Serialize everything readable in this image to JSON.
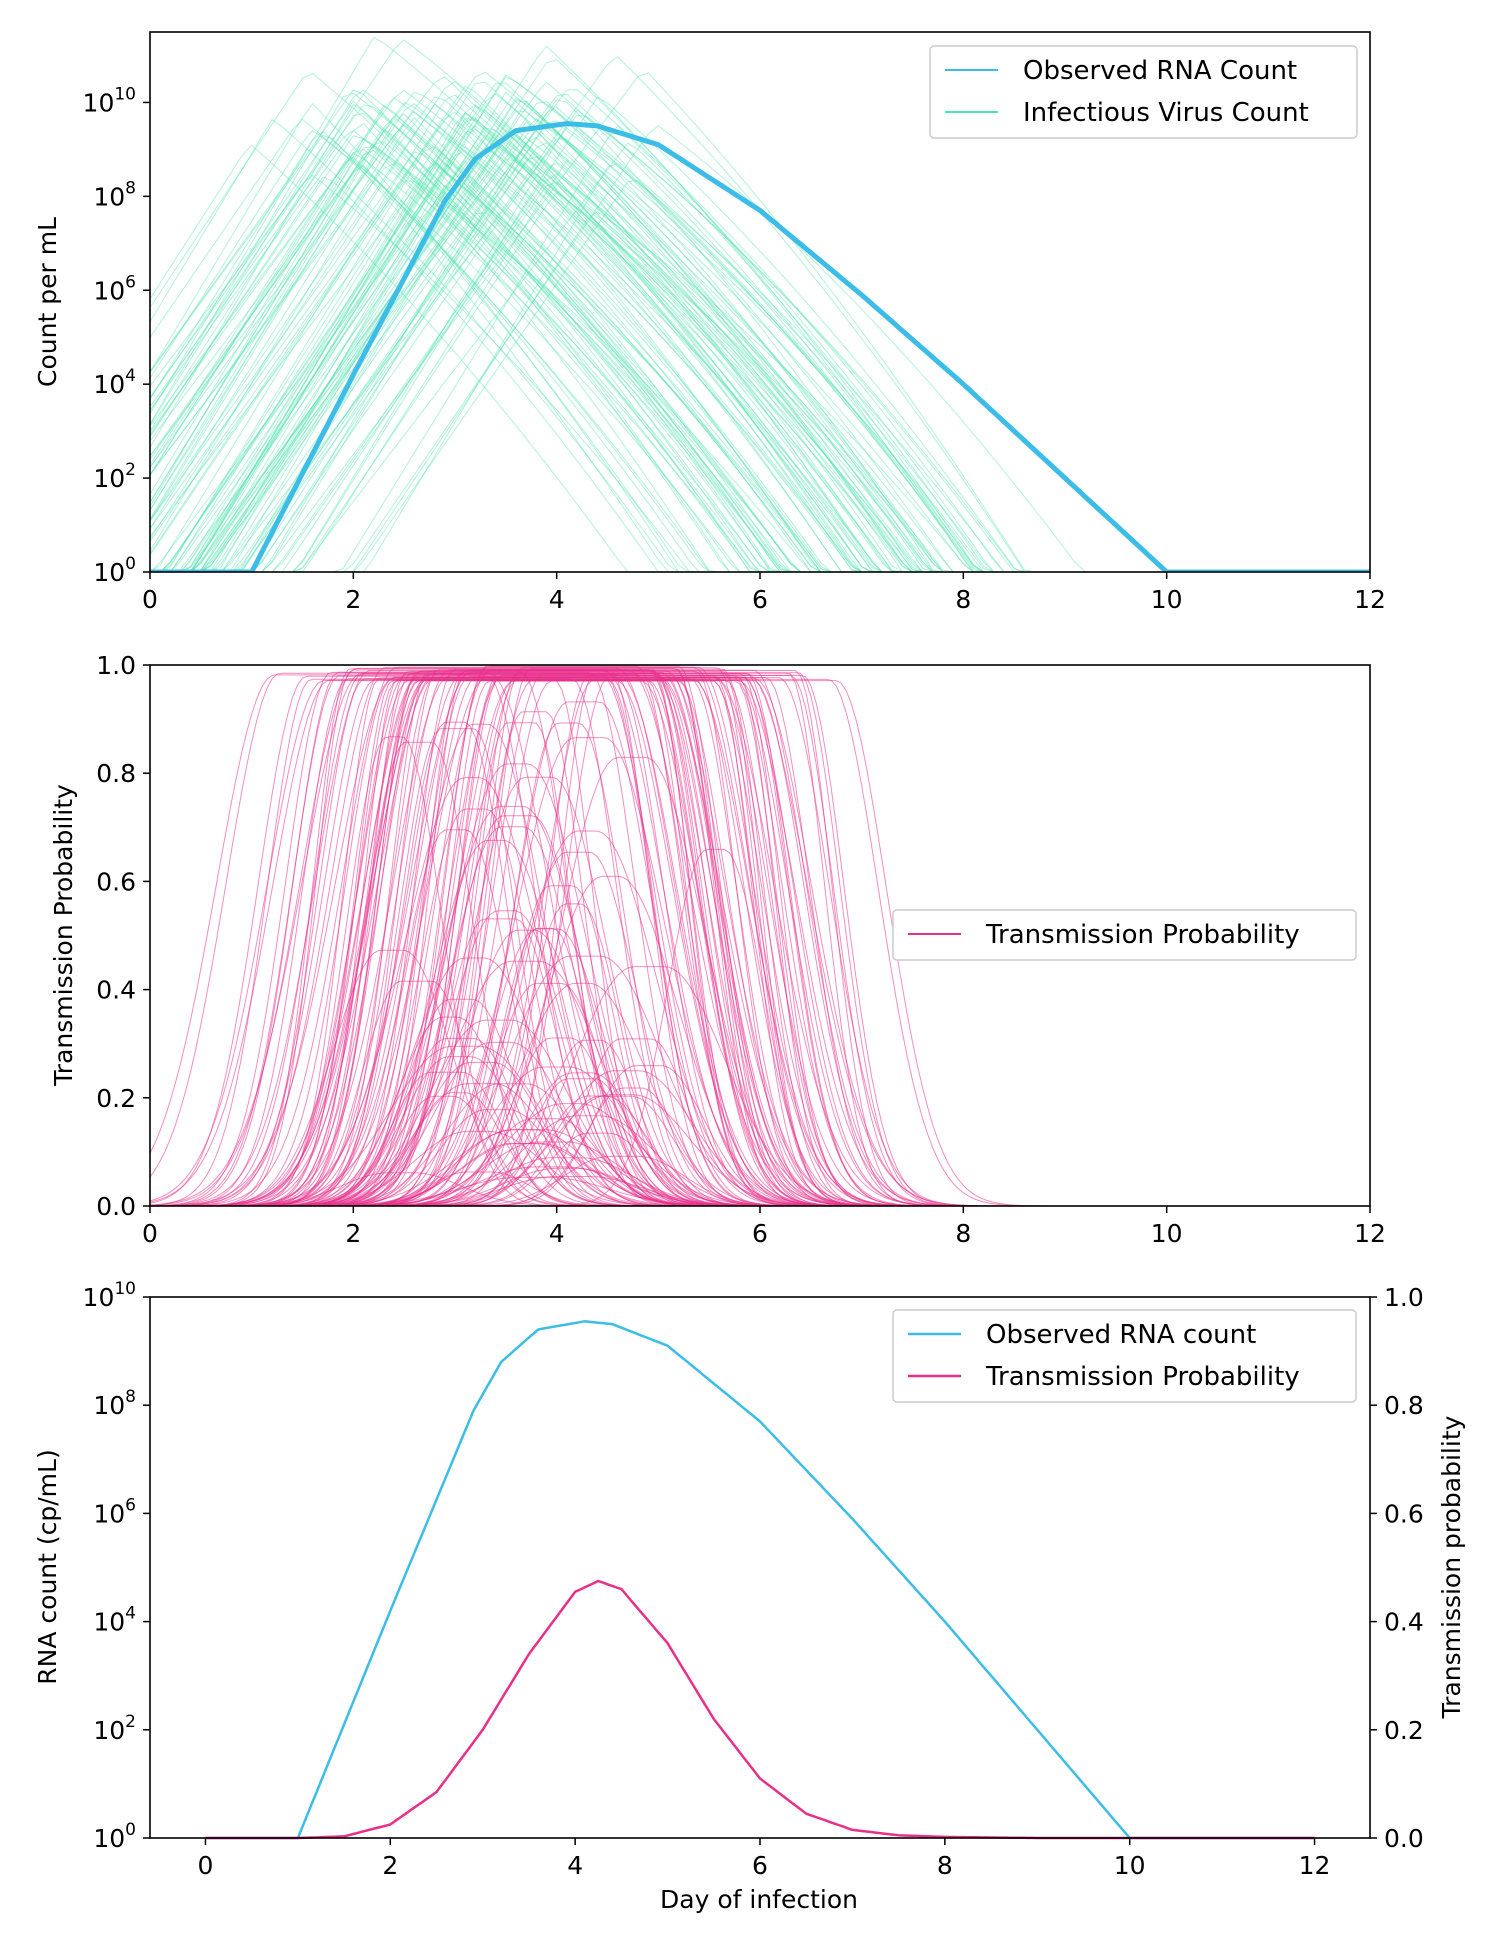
{
  "chart_data": [
    {
      "id": "top",
      "type": "line",
      "title": "",
      "xlabel": "",
      "ylabel": "Count per mL",
      "xlim": [
        0,
        12
      ],
      "ylim_log10": [
        0,
        11.5
      ],
      "yscale": "log",
      "xticks": [
        "0",
        "2",
        "4",
        "6",
        "8",
        "10",
        "12"
      ],
      "yticks": [
        {
          "base": "10",
          "exp": "0"
        },
        {
          "base": "10",
          "exp": "2"
        },
        {
          "base": "10",
          "exp": "4"
        },
        {
          "base": "10",
          "exp": "6"
        },
        {
          "base": "10",
          "exp": "8"
        },
        {
          "base": "10",
          "exp": "10"
        }
      ],
      "legend_position": "upper-right",
      "colors": {
        "rna": "#3cbde8",
        "virus": "#52e3b0"
      },
      "series": [
        {
          "name": "Observed RNA Count",
          "x": [
            0,
            1.0,
            2.0,
            2.9,
            3.2,
            3.6,
            4.1,
            4.4,
            5.0,
            6.0,
            7.0,
            8.0,
            9.0,
            10.0,
            10.5,
            12
          ],
          "y_log10": [
            0,
            0,
            4.2,
            7.9,
            8.8,
            9.4,
            9.55,
            9.5,
            9.1,
            7.7,
            5.9,
            4.0,
            2.0,
            0,
            0,
            0
          ]
        },
        {
          "name": "Infectious Virus Count",
          "note_count": 120
        }
      ]
    },
    {
      "id": "middle",
      "type": "line",
      "title": "",
      "xlabel": "",
      "ylabel": "Transmission Probability",
      "xlim": [
        0,
        12
      ],
      "ylim": [
        0,
        1
      ],
      "xticks": [
        "0",
        "2",
        "4",
        "6",
        "8",
        "10",
        "12"
      ],
      "yticks": [
        "0.0",
        "0.2",
        "0.4",
        "0.6",
        "0.8",
        "1.0"
      ],
      "legend_position": "center-right",
      "colors": {
        "prob": "#e8308a"
      },
      "series": [
        {
          "name": "Transmission Probability"
        }
      ]
    },
    {
      "id": "bottom",
      "type": "line",
      "title": "",
      "xlabel": "Day of infection",
      "ylabel": "RNA count (cp/mL)",
      "ylabel_right": "Transmission probability",
      "xlim": [
        -0.6,
        12.6
      ],
      "ylim_log10": [
        0,
        10
      ],
      "ylim_right": [
        0,
        1
      ],
      "xticks": [
        "0",
        "2",
        "4",
        "6",
        "8",
        "10",
        "12"
      ],
      "yticks": [
        {
          "base": "10",
          "exp": "0"
        },
        {
          "base": "10",
          "exp": "2"
        },
        {
          "base": "10",
          "exp": "4"
        },
        {
          "base": "10",
          "exp": "6"
        },
        {
          "base": "10",
          "exp": "8"
        },
        {
          "base": "10",
          "exp": "10"
        }
      ],
      "yticks_right": [
        "0.0",
        "0.2",
        "0.4",
        "0.6",
        "0.8",
        "1.0"
      ],
      "legend_position": "upper-right",
      "colors": {
        "rna": "#3cbde8",
        "prob": "#e8308a"
      },
      "series": [
        {
          "name": "Observed RNA count",
          "x": [
            0,
            1.0,
            2.0,
            2.9,
            3.2,
            3.6,
            4.1,
            4.4,
            5.0,
            6.0,
            7.0,
            8.0,
            9.0,
            10.0,
            10.5,
            12
          ],
          "y_log10": [
            0,
            0,
            4.2,
            7.9,
            8.8,
            9.4,
            9.55,
            9.5,
            9.1,
            7.7,
            5.9,
            4.0,
            2.0,
            0,
            0,
            0
          ]
        },
        {
          "name": "Transmission Probability",
          "x": [
            0,
            1.0,
            1.5,
            2.0,
            2.5,
            3.0,
            3.5,
            4.0,
            4.25,
            4.5,
            5.0,
            5.5,
            6.0,
            6.5,
            7.0,
            7.5,
            8.0,
            9.0,
            10,
            12
          ],
          "y": [
            0,
            0,
            0.003,
            0.025,
            0.085,
            0.2,
            0.34,
            0.455,
            0.475,
            0.46,
            0.36,
            0.22,
            0.11,
            0.045,
            0.015,
            0.005,
            0.002,
            0,
            0,
            0
          ]
        }
      ]
    }
  ]
}
